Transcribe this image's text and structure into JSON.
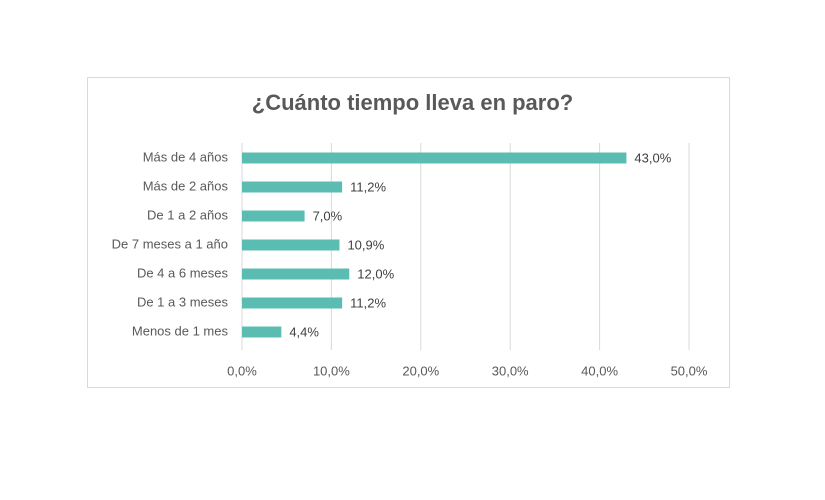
{
  "chart_data": {
    "type": "bar",
    "orientation": "horizontal",
    "title": "¿Cuánto tiempo lleva en paro?",
    "categories": [
      "Más de 4 años",
      "Más de 2 años",
      "De 1 a 2 años",
      "De 7 meses a 1 año",
      "De 4 a 6 meses",
      "De 1 a 3 meses",
      "Menos de 1 mes"
    ],
    "values": [
      43.0,
      11.2,
      7.0,
      10.9,
      12.0,
      11.2,
      4.4
    ],
    "value_labels": [
      "43,0%",
      "11,2%",
      "7,0%",
      "10,9%",
      "12,0%",
      "11,2%",
      "4,4%"
    ],
    "xlim": [
      0,
      50
    ],
    "x_ticks": [
      0,
      10,
      20,
      30,
      40,
      50
    ],
    "x_tick_labels": [
      "0,0%",
      "10,0%",
      "20,0%",
      "30,0%",
      "40,0%",
      "50,0%"
    ],
    "xlabel": "",
    "ylabel": "",
    "grid": true,
    "legend": "none",
    "colors": {
      "bar": "#5bbcb2",
      "grid": "#d9d9d9",
      "text": "#595959"
    }
  }
}
